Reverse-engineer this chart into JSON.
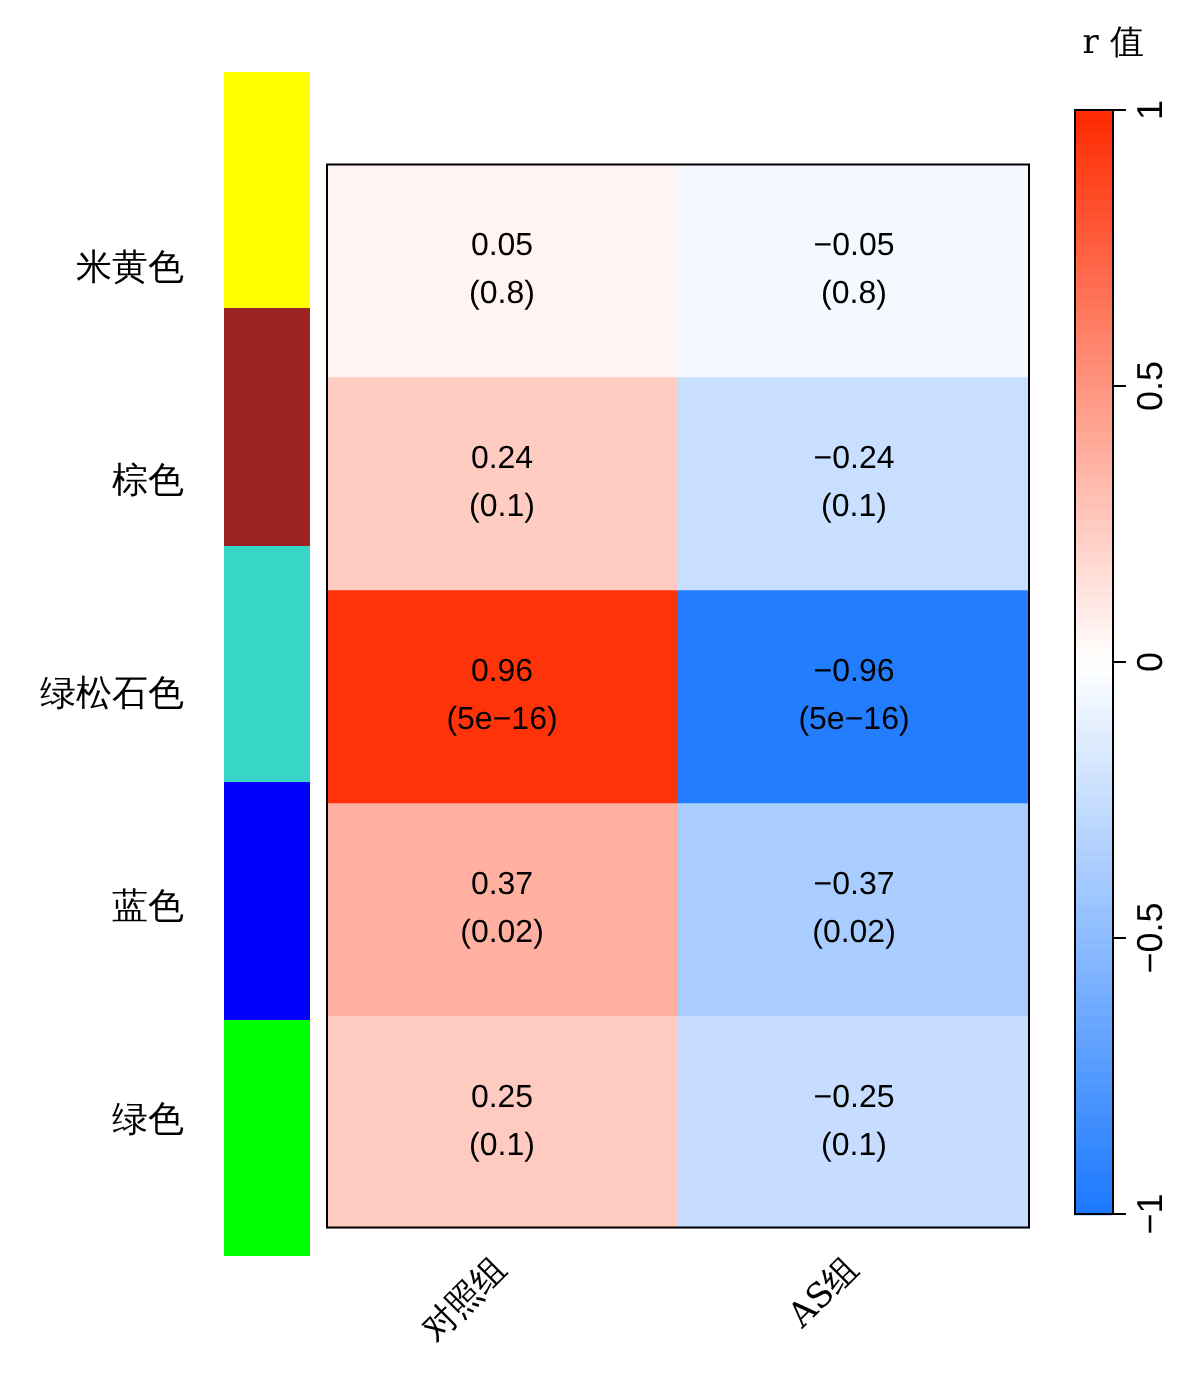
{
  "chart_data": {
    "type": "heatmap",
    "categories": [
      "对照组",
      "AS组"
    ],
    "y_categories": [
      "米黄色",
      "棕色",
      "绿松石色",
      "蓝色",
      "绿色"
    ],
    "cells": [
      [
        0.05,
        -0.05
      ],
      [
        0.24,
        -0.24
      ],
      [
        0.96,
        -0.96
      ],
      [
        0.37,
        -0.37
      ],
      [
        0.25,
        -0.25
      ]
    ],
    "cell_labels": [
      [
        "0.05\n(0.8)",
        "−0.05\n(0.8)"
      ],
      [
        "0.24\n(0.1)",
        "−0.24\n(0.1)"
      ],
      [
        "0.96\n(5e−16)",
        "−0.96\n(5e−16)"
      ],
      [
        "0.37\n(0.02)",
        "−0.37\n(0.02)"
      ],
      [
        "0.25\n(0.1)",
        "−0.25\n(0.1)"
      ]
    ],
    "clabel": "r 值",
    "clim": [
      -1,
      1
    ],
    "cticks": [
      {
        "value": -1,
        "label": "−1"
      },
      {
        "value": -0.5,
        "label": "−0.5"
      },
      0,
      0.5,
      1
    ]
  }
}
